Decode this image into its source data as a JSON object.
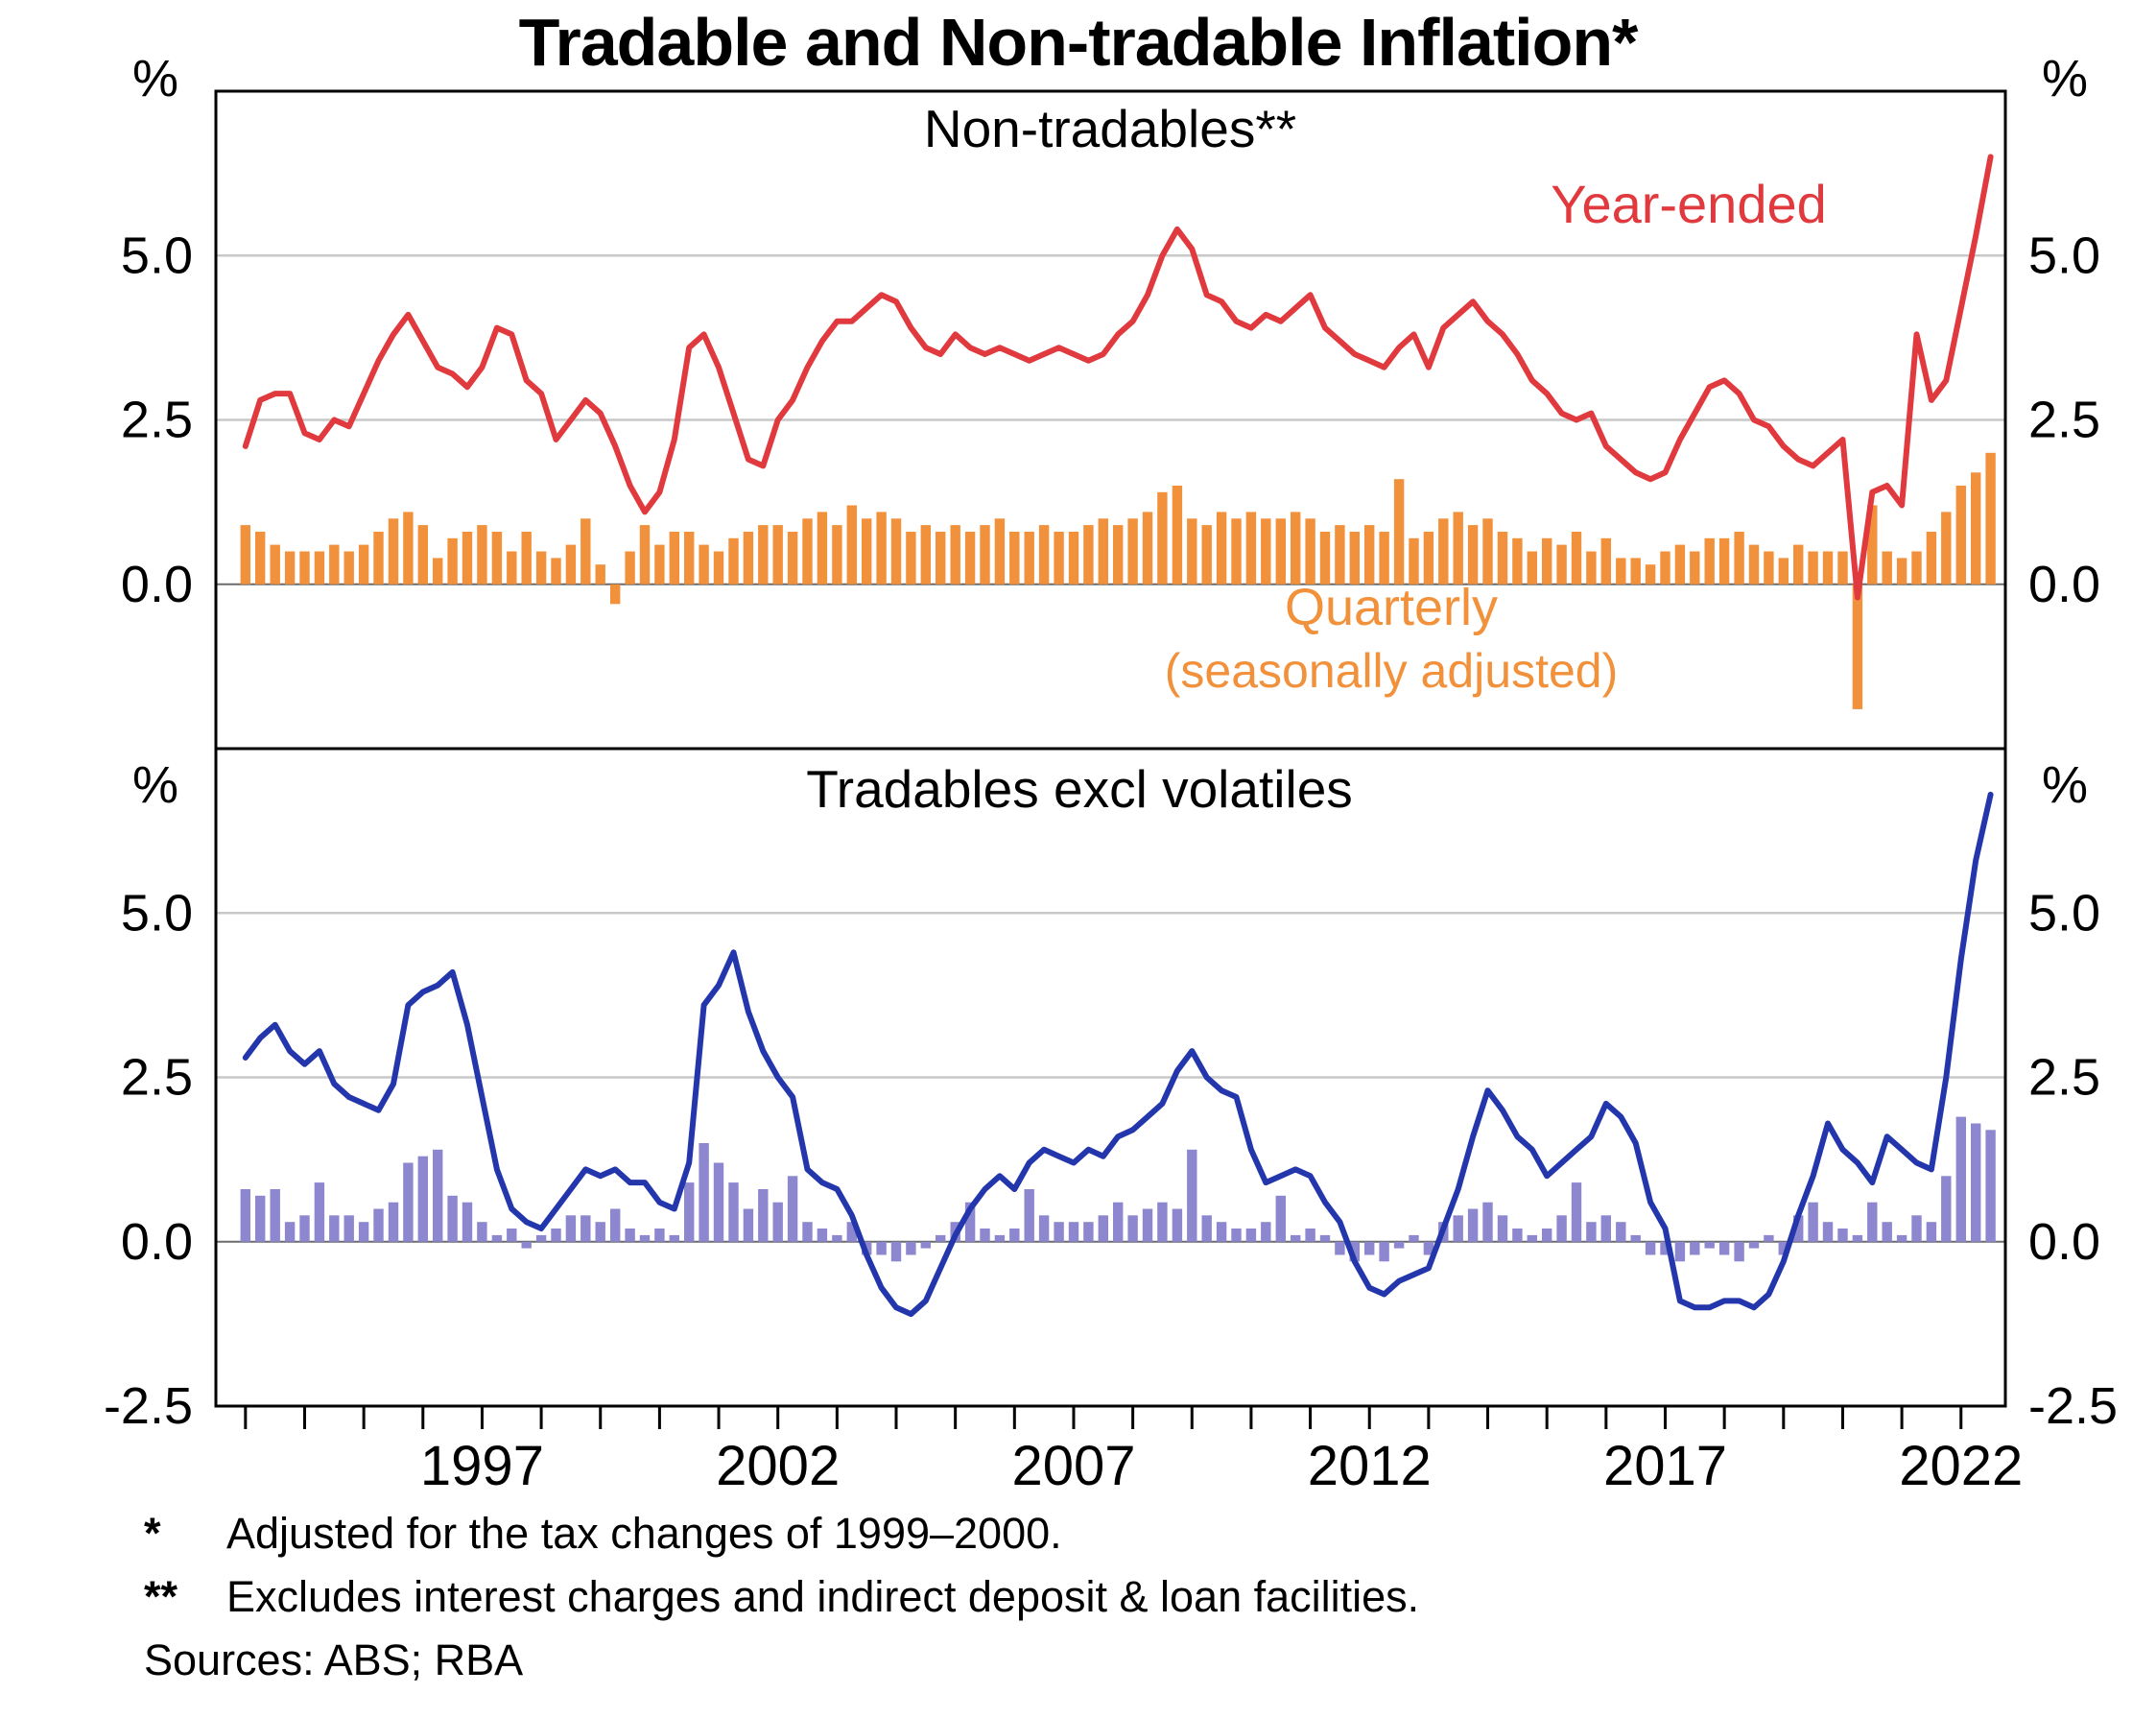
{
  "title": "Tradable and Non-tradable Inflation*",
  "footnotes": [
    {
      "marker": "*",
      "text": "Adjusted for the tax changes of 1999–2000."
    },
    {
      "marker": "**",
      "text": "Excludes interest charges and indirect deposit & loan facilities."
    }
  ],
  "sources": "Sources: ABS; RBA",
  "colors": {
    "red": "#e0393e",
    "orange": "#f2913b",
    "blue": "#2436ab",
    "purple": "#8d87cf",
    "grid": "#c8c8c8",
    "zero": "#6b6b6b",
    "frame": "#000000"
  },
  "x_axis": {
    "tick_start": 1993,
    "tick_end": 2022,
    "labels": [
      "1997",
      "2002",
      "2007",
      "2012",
      "2017",
      "2022"
    ]
  },
  "chart_data": [
    {
      "type": "line+bar",
      "title": "Non-tradables**",
      "unit": "%",
      "x_start": 1993.0,
      "x_step": 0.25,
      "xlim": [
        1992.5,
        2022.75
      ],
      "ylim": [
        -2.5,
        7.5
      ],
      "grid": true,
      "yticks": [
        {
          "v": 0.0,
          "label": "0.0"
        },
        {
          "v": 2.5,
          "label": "2.5"
        },
        {
          "v": 5.0,
          "label": "5.0"
        }
      ],
      "bar_label_lines": [
        "Quarterly",
        "(seasonally adjusted)"
      ],
      "series": [
        {
          "name": "Year-ended",
          "type": "line",
          "color": "#e0393e",
          "values": [
            2.1,
            2.8,
            2.9,
            2.9,
            2.3,
            2.2,
            2.5,
            2.4,
            2.9,
            3.4,
            3.8,
            4.1,
            3.7,
            3.3,
            3.2,
            3.0,
            3.3,
            3.9,
            3.8,
            3.1,
            2.9,
            2.2,
            2.5,
            2.8,
            2.6,
            2.1,
            1.5,
            1.1,
            1.4,
            2.2,
            3.6,
            3.8,
            3.3,
            2.6,
            1.9,
            1.8,
            2.5,
            2.8,
            3.3,
            3.7,
            4.0,
            4.0,
            4.2,
            4.4,
            4.3,
            3.9,
            3.6,
            3.5,
            3.8,
            3.6,
            3.5,
            3.6,
            3.5,
            3.4,
            3.5,
            3.6,
            3.5,
            3.4,
            3.5,
            3.8,
            4.0,
            4.4,
            5.0,
            5.4,
            5.1,
            4.4,
            4.3,
            4.0,
            3.9,
            4.1,
            4.0,
            4.2,
            4.4,
            3.9,
            3.7,
            3.5,
            3.4,
            3.3,
            3.6,
            3.8,
            3.3,
            3.9,
            4.1,
            4.3,
            4.0,
            3.8,
            3.5,
            3.1,
            2.9,
            2.6,
            2.5,
            2.6,
            2.1,
            1.9,
            1.7,
            1.6,
            1.7,
            2.2,
            2.6,
            3.0,
            3.1,
            2.9,
            2.5,
            2.4,
            2.1,
            1.9,
            1.8,
            2.0,
            2.2,
            -0.2,
            1.4,
            1.5,
            1.2,
            3.8,
            2.8,
            3.1,
            4.2,
            5.3,
            6.5
          ]
        },
        {
          "name": "Quarterly (seasonally adjusted)",
          "type": "bar",
          "color": "#f2913b",
          "values": [
            0.9,
            0.8,
            0.6,
            0.5,
            0.5,
            0.5,
            0.6,
            0.5,
            0.6,
            0.8,
            1.0,
            1.1,
            0.9,
            0.4,
            0.7,
            0.8,
            0.9,
            0.8,
            0.5,
            0.8,
            0.5,
            0.4,
            0.6,
            1.0,
            0.3,
            -0.3,
            0.5,
            0.9,
            0.6,
            0.8,
            0.8,
            0.6,
            0.5,
            0.7,
            0.8,
            0.9,
            0.9,
            0.8,
            1.0,
            1.1,
            0.9,
            1.2,
            1.0,
            1.1,
            1.0,
            0.8,
            0.9,
            0.8,
            0.9,
            0.8,
            0.9,
            1.0,
            0.8,
            0.8,
            0.9,
            0.8,
            0.8,
            0.9,
            1.0,
            0.9,
            1.0,
            1.1,
            1.4,
            1.5,
            1.0,
            0.9,
            1.1,
            1.0,
            1.1,
            1.0,
            1.0,
            1.1,
            1.0,
            0.8,
            0.9,
            0.8,
            0.9,
            0.8,
            1.6,
            0.7,
            0.8,
            1.0,
            1.1,
            0.9,
            1.0,
            0.8,
            0.7,
            0.5,
            0.7,
            0.6,
            0.8,
            0.5,
            0.7,
            0.4,
            0.4,
            0.3,
            0.5,
            0.6,
            0.5,
            0.7,
            0.7,
            0.8,
            0.6,
            0.5,
            0.4,
            0.6,
            0.5,
            0.5,
            0.5,
            -1.9,
            1.2,
            0.5,
            0.4,
            0.5,
            0.8,
            1.1,
            1.5,
            1.7,
            2.0
          ]
        }
      ]
    },
    {
      "type": "line+bar",
      "title": "Tradables excl volatiles",
      "unit": "%",
      "x_start": 1993.0,
      "x_step": 0.25,
      "xlim": [
        1992.5,
        2022.75
      ],
      "ylim": [
        -2.5,
        7.5
      ],
      "grid": true,
      "yticks": [
        {
          "v": -2.5,
          "label": "-2.5"
        },
        {
          "v": 0.0,
          "label": "0.0"
        },
        {
          "v": 2.5,
          "label": "2.5"
        },
        {
          "v": 5.0,
          "label": "5.0"
        }
      ],
      "series": [
        {
          "name": "Year-ended",
          "type": "line",
          "color": "#2436ab",
          "values": [
            2.8,
            3.1,
            3.3,
            2.9,
            2.7,
            2.9,
            2.4,
            2.2,
            2.1,
            2.0,
            2.4,
            3.6,
            3.8,
            3.9,
            4.1,
            3.3,
            2.2,
            1.1,
            0.5,
            0.3,
            0.2,
            0.5,
            0.8,
            1.1,
            1.0,
            1.1,
            0.9,
            0.9,
            0.6,
            0.5,
            1.2,
            3.6,
            3.9,
            4.4,
            3.5,
            2.9,
            2.5,
            2.2,
            1.1,
            0.9,
            0.8,
            0.4,
            -0.2,
            -0.7,
            -1.0,
            -1.1,
            -0.9,
            -0.4,
            0.1,
            0.5,
            0.8,
            1.0,
            0.8,
            1.2,
            1.4,
            1.3,
            1.2,
            1.4,
            1.3,
            1.6,
            1.7,
            1.9,
            2.1,
            2.6,
            2.9,
            2.5,
            2.3,
            2.2,
            1.4,
            0.9,
            1.0,
            1.1,
            1.0,
            0.6,
            0.3,
            -0.3,
            -0.7,
            -0.8,
            -0.6,
            -0.5,
            -0.4,
            0.2,
            0.8,
            1.6,
            2.3,
            2.0,
            1.6,
            1.4,
            1.0,
            1.2,
            1.4,
            1.6,
            2.1,
            1.9,
            1.5,
            0.6,
            0.2,
            -0.9,
            -1.0,
            -1.0,
            -0.9,
            -0.9,
            -1.0,
            -0.8,
            -0.3,
            0.4,
            1.0,
            1.8,
            1.4,
            1.2,
            0.9,
            1.6,
            1.4,
            1.2,
            1.1,
            2.5,
            4.3,
            5.8,
            6.8
          ]
        },
        {
          "name": "Quarterly (seasonally adjusted)",
          "type": "bar",
          "color": "#8d87cf",
          "values": [
            0.8,
            0.7,
            0.8,
            0.3,
            0.4,
            0.9,
            0.4,
            0.4,
            0.3,
            0.5,
            0.6,
            1.2,
            1.3,
            1.4,
            0.7,
            0.6,
            0.3,
            0.1,
            0.2,
            -0.1,
            0.1,
            0.2,
            0.4,
            0.4,
            0.3,
            0.5,
            0.2,
            0.1,
            0.2,
            0.1,
            0.9,
            1.5,
            1.2,
            0.9,
            0.5,
            0.8,
            0.6,
            1.0,
            0.3,
            0.2,
            0.1,
            0.3,
            -0.2,
            -0.2,
            -0.3,
            -0.2,
            -0.1,
            0.1,
            0.3,
            0.6,
            0.2,
            0.1,
            0.2,
            0.8,
            0.4,
            0.3,
            0.3,
            0.3,
            0.4,
            0.6,
            0.4,
            0.5,
            0.6,
            0.5,
            1.4,
            0.4,
            0.3,
            0.2,
            0.2,
            0.3,
            0.7,
            0.1,
            0.2,
            0.1,
            -0.2,
            -0.3,
            -0.2,
            -0.3,
            -0.1,
            0.1,
            -0.2,
            0.3,
            0.4,
            0.5,
            0.6,
            0.4,
            0.2,
            0.1,
            0.2,
            0.4,
            0.9,
            0.3,
            0.4,
            0.3,
            0.1,
            -0.2,
            -0.2,
            -0.3,
            -0.2,
            -0.1,
            -0.2,
            -0.3,
            -0.1,
            0.1,
            -0.2,
            0.4,
            0.6,
            0.3,
            0.2,
            0.1,
            0.6,
            0.3,
            0.1,
            0.4,
            0.3,
            1.0,
            1.9,
            1.8,
            1.7
          ]
        }
      ]
    }
  ]
}
